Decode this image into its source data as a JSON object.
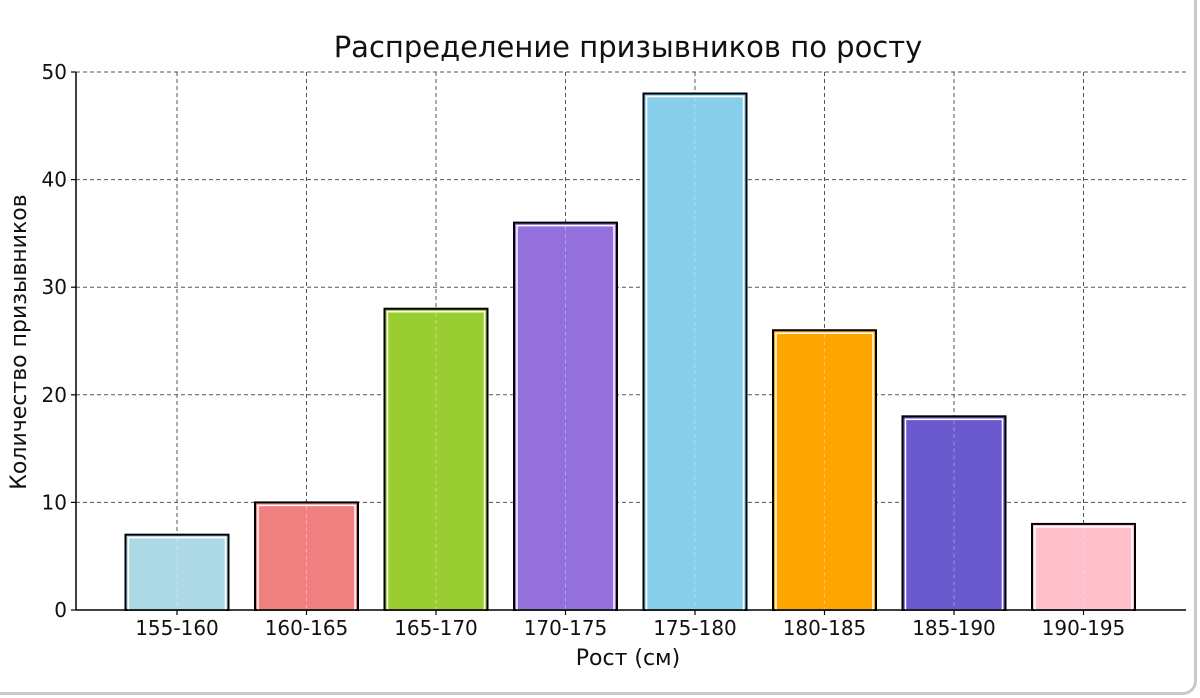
{
  "chart_data": {
    "type": "bar",
    "title": "Распределение призывников по росту",
    "xlabel": "Рост (см)",
    "ylabel": "Количество призывников",
    "categories": [
      "155-160",
      "160-165",
      "165-170",
      "170-175",
      "175-180",
      "180-185",
      "185-190",
      "190-195"
    ],
    "values": [
      7,
      10,
      28,
      36,
      48,
      26,
      18,
      8
    ],
    "colors": [
      "#add8e6",
      "#f08080",
      "#9acd32",
      "#9370db",
      "#87ceeb",
      "#ffa500",
      "#6a5acd",
      "#ffc0cb"
    ],
    "ylim": [
      0,
      50
    ],
    "yticks": [
      0,
      10,
      20,
      30,
      40,
      50
    ],
    "grid": true,
    "legend": "none"
  }
}
